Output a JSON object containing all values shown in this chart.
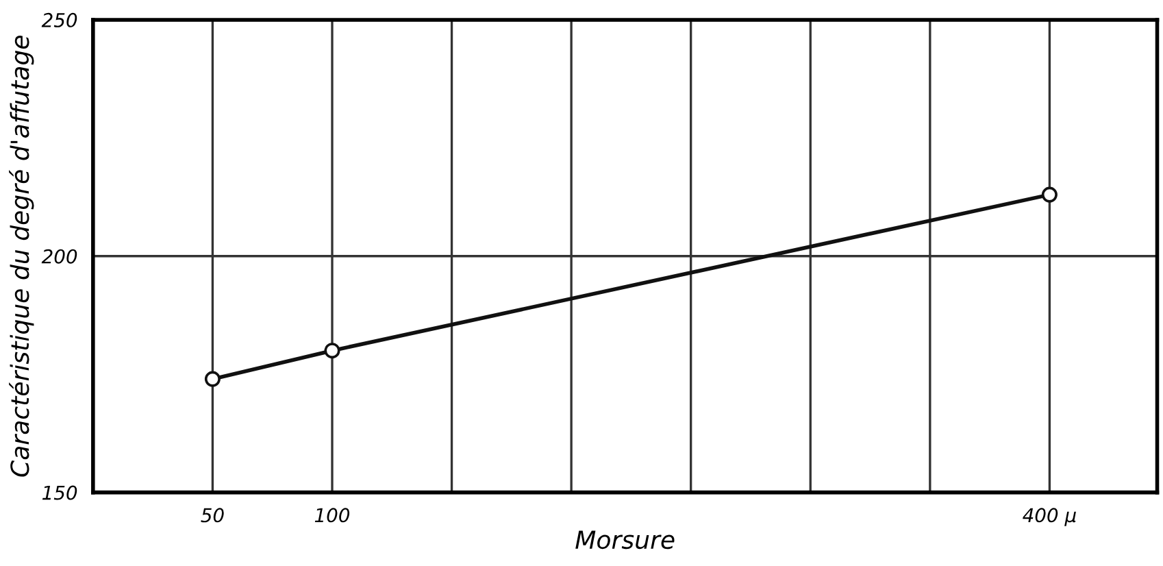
{
  "chart_data": {
    "type": "line",
    "xlabel": "Morsure",
    "ylabel": "Caractéristique du degré d'affutage",
    "x": [
      50,
      100,
      400
    ],
    "series": [
      {
        "color": "#111111",
        "values": [
          174,
          180,
          213
        ]
      }
    ],
    "xlim": [
      0,
      445
    ],
    "ylim": [
      150,
      250
    ],
    "xticks": [
      50,
      100,
      {
        "value": 150,
        "label": null
      },
      {
        "value": 200,
        "label": null
      },
      {
        "value": 250,
        "label": null
      },
      {
        "value": 300,
        "label": null
      },
      {
        "value": 350,
        "label": null
      },
      {
        "value": 400,
        "label": "400 μ"
      }
    ],
    "yticks": [
      150,
      200,
      250
    ],
    "grid": true,
    "marker": "circle",
    "line_style": "solid"
  }
}
